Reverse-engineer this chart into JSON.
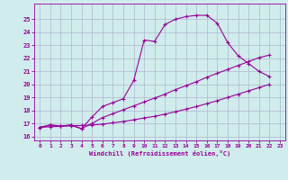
{
  "xlabel": "Windchill (Refroidissement éolien,°C)",
  "background_color": "#d0ecec",
  "grid_color": "#b0b8d0",
  "line_color": "#990099",
  "xlim": [
    -0.5,
    23.5
  ],
  "ylim": [
    15.7,
    26.2
  ],
  "xticks": [
    0,
    1,
    2,
    3,
    4,
    5,
    6,
    7,
    8,
    9,
    10,
    11,
    12,
    13,
    14,
    15,
    16,
    17,
    18,
    19,
    20,
    21,
    22,
    23
  ],
  "yticks": [
    16,
    17,
    18,
    19,
    20,
    21,
    22,
    23,
    24,
    25
  ],
  "line1_x": [
    0,
    1,
    2,
    3,
    4,
    5,
    6,
    7,
    8,
    9,
    10,
    11,
    12,
    13,
    14,
    15,
    16,
    17,
    18,
    19,
    20,
    21,
    22
  ],
  "line1_y": [
    16.7,
    16.9,
    16.8,
    16.9,
    16.6,
    17.5,
    18.3,
    18.6,
    18.9,
    20.3,
    23.4,
    23.3,
    24.6,
    25.0,
    25.2,
    25.3,
    25.3,
    24.7,
    23.2,
    22.2,
    21.6,
    21.0,
    20.6
  ],
  "line2_x": [
    0,
    1,
    2,
    3,
    4,
    5,
    6,
    7,
    8,
    9,
    10,
    11,
    12,
    13,
    14,
    15,
    16,
    17,
    18,
    19,
    20,
    21,
    22
  ],
  "line2_y": [
    16.7,
    16.85,
    16.8,
    16.85,
    16.6,
    17.0,
    17.45,
    17.75,
    18.05,
    18.35,
    18.65,
    18.95,
    19.25,
    19.6,
    19.9,
    20.2,
    20.55,
    20.85,
    21.15,
    21.45,
    21.75,
    22.05,
    22.25
  ],
  "line3_x": [
    0,
    1,
    2,
    3,
    4,
    5,
    6,
    7,
    8,
    9,
    10,
    11,
    12,
    13,
    14,
    15,
    16,
    17,
    18,
    19,
    20,
    21,
    22
  ],
  "line3_y": [
    16.7,
    16.75,
    16.78,
    16.82,
    16.85,
    16.88,
    16.95,
    17.05,
    17.15,
    17.28,
    17.42,
    17.55,
    17.72,
    17.9,
    18.1,
    18.3,
    18.52,
    18.75,
    19.0,
    19.25,
    19.5,
    19.75,
    20.0
  ]
}
